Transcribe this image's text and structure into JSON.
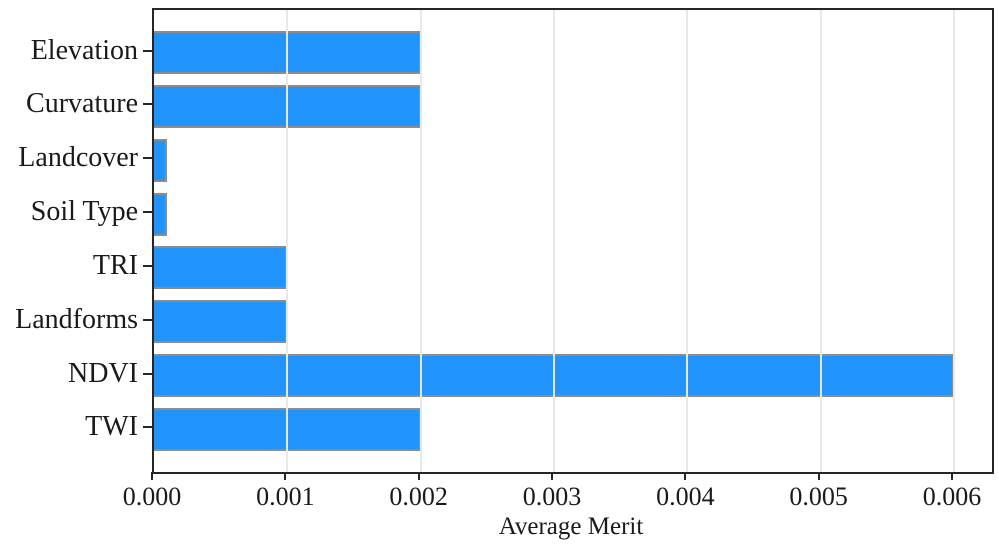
{
  "figure": {
    "background_color": "#ffffff"
  },
  "chart_data": {
    "type": "bar",
    "orientation": "horizontal",
    "title": "",
    "xlabel": "Average Merit",
    "ylabel": "",
    "categories": [
      "Elevation",
      "Curvature",
      "Landcover",
      "Soil Type",
      "TRI",
      "Landforms",
      "NDVI",
      "TWI"
    ],
    "values": [
      0.002,
      0.002,
      0.0001,
      0.0001,
      0.001,
      0.001,
      0.006,
      0.002
    ],
    "xlim": [
      0,
      0.006285
    ],
    "xticks": [
      {
        "value": 0.0,
        "label": "0.000"
      },
      {
        "value": 0.001,
        "label": "0.001"
      },
      {
        "value": 0.002,
        "label": "0.002"
      },
      {
        "value": 0.003,
        "label": "0.003"
      },
      {
        "value": 0.004,
        "label": "0.004"
      },
      {
        "value": 0.005,
        "label": "0.005"
      },
      {
        "value": 0.006,
        "label": "0.006"
      }
    ],
    "grid": "vertical",
    "legend": null,
    "bar_color": "#2094FA",
    "bar_edge_color": "#8c8c8c",
    "gridline_color": "#e8e8e8",
    "axis_color": "#262626",
    "text_color": "#1a1a1a"
  }
}
